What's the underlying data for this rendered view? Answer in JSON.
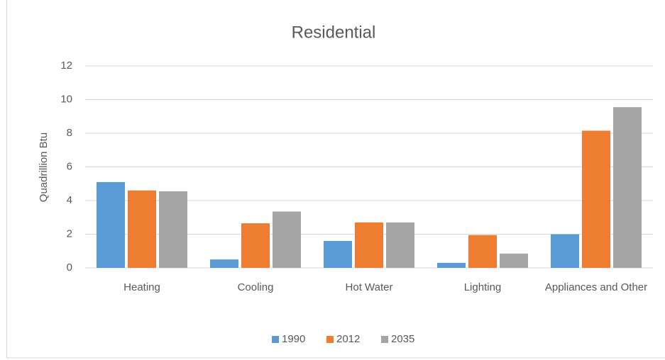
{
  "chart_data": {
    "type": "bar",
    "title": "Residential",
    "y_label": "Quadrillion Btu",
    "categories": [
      "Heating",
      "Cooling",
      "Hot Water",
      "Lighting",
      "Appliances and Other"
    ],
    "series": [
      {
        "name": "1990",
        "color": "#5b9bd5",
        "values": [
          5.1,
          0.5,
          1.6,
          0.3,
          2.0
        ]
      },
      {
        "name": "2012",
        "color": "#ed7d31",
        "values": [
          4.6,
          2.65,
          2.7,
          1.95,
          8.15
        ]
      },
      {
        "name": "2035",
        "color": "#a5a5a5",
        "values": [
          4.55,
          3.35,
          2.7,
          0.85,
          9.55
        ]
      }
    ],
    "ylim": [
      0,
      12
    ],
    "yticks": [
      0,
      2,
      4,
      6,
      8,
      10,
      12
    ],
    "grid": true,
    "legend": "bottom"
  }
}
